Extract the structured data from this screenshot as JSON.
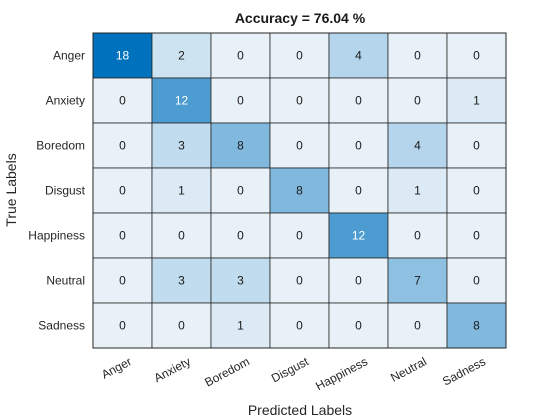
{
  "chart_data": {
    "type": "heatmap",
    "title": "Accuracy = 76.04 %",
    "xlabel": "Predicted Labels",
    "ylabel": "True Labels",
    "x_categories": [
      "Anger",
      "Anxiety",
      "Boredom",
      "Disgust",
      "Happiness",
      "Neutral",
      "Sadness"
    ],
    "y_categories": [
      "Anger",
      "Anxiety",
      "Boredom",
      "Disgust",
      "Happiness",
      "Neutral",
      "Sadness"
    ],
    "values": [
      [
        18,
        2,
        0,
        0,
        4,
        0,
        0
      ],
      [
        0,
        12,
        0,
        0,
        0,
        0,
        1
      ],
      [
        0,
        3,
        8,
        0,
        0,
        4,
        0
      ],
      [
        0,
        1,
        0,
        8,
        0,
        1,
        0
      ],
      [
        0,
        0,
        0,
        0,
        12,
        0,
        0
      ],
      [
        0,
        3,
        3,
        0,
        0,
        7,
        0
      ],
      [
        0,
        0,
        1,
        0,
        0,
        0,
        8
      ]
    ],
    "colormap": {
      "low": "#e8f1f8",
      "high": "#0072bd"
    },
    "value_range": [
      0,
      18
    ]
  }
}
